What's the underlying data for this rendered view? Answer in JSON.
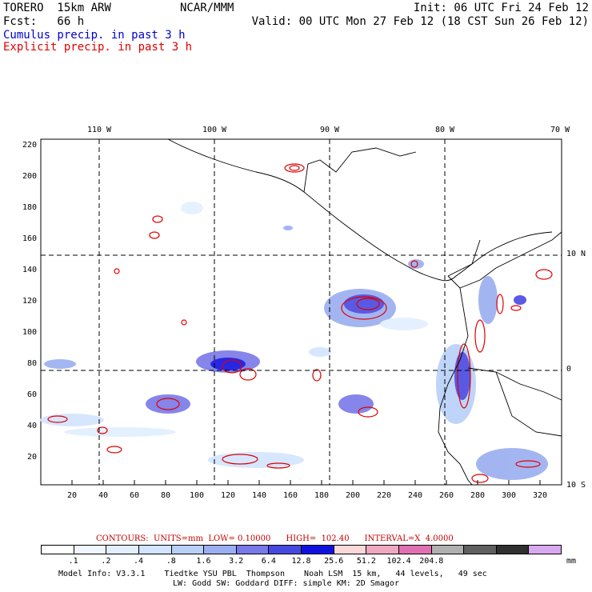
{
  "header": {
    "model": "TORERO  15km ARW",
    "org": "NCAR/MMM",
    "init": "Init: 06 UTC Fri 24 Feb 12",
    "fcst": "Fcst:   66 h",
    "valid": "Valid: 00 UTC Mon 27 Feb 12 (18 CST Sun 26 Feb 12)",
    "field1": "Cumulus precip. in past 3 h",
    "field2": "Explicit precip. in past 3 h",
    "field1_color": "#0000cc",
    "field2_color": "#e00000"
  },
  "map": {
    "lon_labels": [
      "110 W",
      "100 W",
      "90 W",
      "80 W",
      "70 W"
    ],
    "lat_labels": [
      "10 N",
      "0",
      "10 S"
    ],
    "x_ticks": [
      "20",
      "40",
      "60",
      "80",
      "100",
      "120",
      "140",
      "160",
      "180",
      "200",
      "220",
      "240",
      "260",
      "280",
      "300",
      "320"
    ],
    "y_ticks": [
      "220",
      "200",
      "180",
      "160",
      "140",
      "120",
      "100",
      "80",
      "60",
      "40",
      "20"
    ]
  },
  "contours": {
    "text": "CONTOURS:  UNITS=mm  LOW= 0.10000      HIGH=  102.40      INTERVAL=X  4.0000"
  },
  "scale": {
    "colors": [
      "#ffffff",
      "#f0f6ff",
      "#e2efff",
      "#d2e4ff",
      "#b8d0f8",
      "#9aaef0",
      "#7878e8",
      "#4848e0",
      "#1010e0",
      "#f8d8d8",
      "#f0a8c0",
      "#e070b0",
      "#b0b0b0",
      "#606060",
      "#303030",
      "#d8a8f0"
    ],
    "labels": [
      ".1",
      ".2",
      ".4",
      ".8",
      "1.6",
      "3.2",
      "6.4",
      "12.8",
      "25.6",
      "51.2",
      "102.4",
      "204.8"
    ],
    "unit": "mm"
  },
  "footer": {
    "line1": "Model Info: V3.3.1    Tiedtke YSU PBL  Thompson    Noah LSM  15 km,   44 levels,   49 sec",
    "line2": "LW: Godd SW: Goddard DIFF: simple KM: 2D Smagor"
  }
}
